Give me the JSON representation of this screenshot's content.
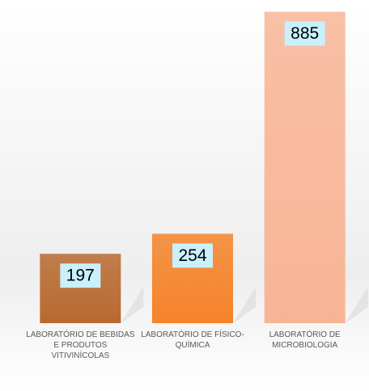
{
  "chart_data": {
    "type": "bar",
    "categories": [
      "LABORATÓRIO DE BEBIDAS E PRODUTOS VITIVINÍCOLAS",
      "LABORATÓRIO DE FÍSICO-QUÍMICA",
      "LABORATÓRIO DE MICROBIOLOGIA"
    ],
    "values": [
      197,
      254,
      885
    ],
    "colors": [
      "#b8692f",
      "#f5832a",
      "#f8b596"
    ],
    "ylim": [
      0,
      900
    ]
  }
}
